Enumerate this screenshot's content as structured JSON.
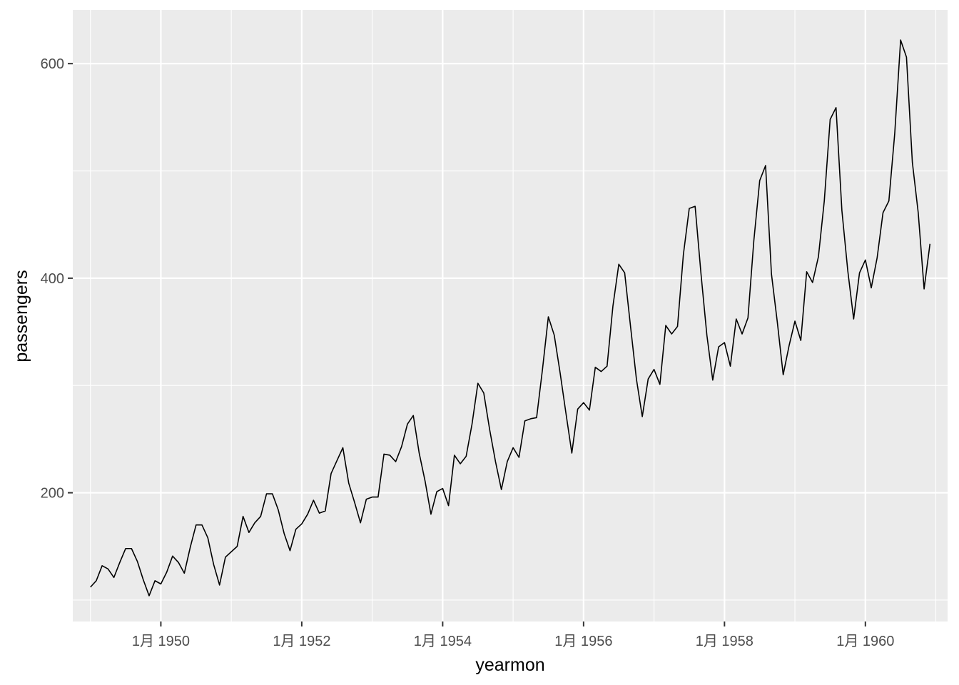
{
  "chart_data": {
    "type": "line",
    "title": "",
    "xlabel": "yearmon",
    "ylabel": "passengers",
    "x_start": "1949-01",
    "x_end": "1960-12",
    "xlim": [
      "1948-10",
      "1961-03"
    ],
    "ylim": [
      80,
      650
    ],
    "x_ticks": [
      {
        "label": "1月 1950",
        "date": "1950-01"
      },
      {
        "label": "1月 1952",
        "date": "1952-01"
      },
      {
        "label": "1月 1954",
        "date": "1954-01"
      },
      {
        "label": "1月 1956",
        "date": "1956-01"
      },
      {
        "label": "1月 1958",
        "date": "1958-01"
      },
      {
        "label": "1月 1960",
        "date": "1960-01"
      }
    ],
    "y_ticks": [
      200,
      400,
      600
    ],
    "y_minor_ticks": [
      100,
      300,
      500
    ],
    "grid": true,
    "colors": {
      "panel": "#ebebeb",
      "grid": "#ffffff",
      "line": "#000000",
      "tick_text": "#4d4d4d"
    },
    "series": [
      {
        "values": [
          112,
          118,
          132,
          129,
          121,
          135,
          148,
          148,
          136,
          119,
          104,
          118,
          115,
          126,
          141,
          135,
          125,
          149,
          170,
          170,
          158,
          133,
          114,
          140,
          145,
          150,
          178,
          163,
          172,
          178,
          199,
          199,
          184,
          162,
          146,
          166,
          171,
          180,
          193,
          181,
          183,
          218,
          230,
          242,
          209,
          191,
          172,
          194,
          196,
          196,
          236,
          235,
          229,
          243,
          264,
          272,
          237,
          211,
          180,
          201,
          204,
          188,
          235,
          227,
          234,
          264,
          302,
          293,
          259,
          229,
          203,
          229,
          242,
          233,
          267,
          269,
          270,
          315,
          364,
          347,
          312,
          274,
          237,
          278,
          284,
          277,
          317,
          313,
          318,
          374,
          413,
          405,
          355,
          306,
          271,
          306,
          315,
          301,
          356,
          348,
          355,
          422,
          465,
          467,
          404,
          347,
          305,
          336,
          340,
          318,
          362,
          348,
          363,
          435,
          491,
          505,
          404,
          359,
          310,
          337,
          360,
          342,
          406,
          396,
          420,
          472,
          548,
          559,
          463,
          407,
          362,
          405,
          417,
          391,
          419,
          461,
          472,
          535,
          622,
          606,
          508,
          461,
          390,
          432
        ]
      }
    ]
  }
}
